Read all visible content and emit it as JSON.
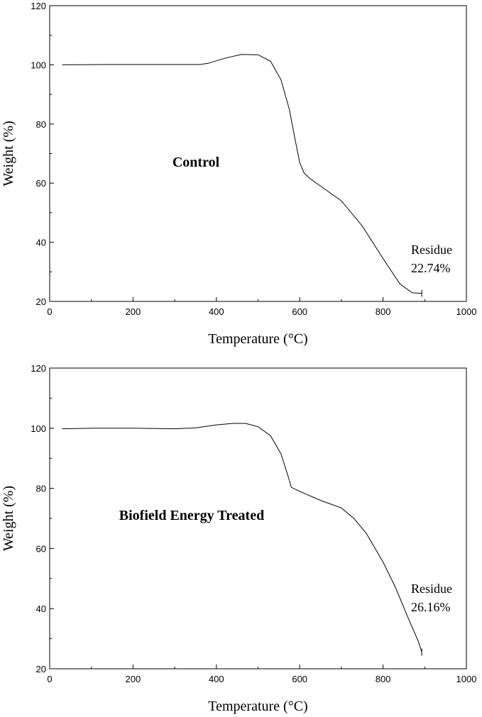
{
  "chart_data": [
    {
      "type": "line",
      "title": "Control",
      "xlabel": "Temperature (°C)",
      "ylabel": "Weight (%)",
      "xlim": [
        0,
        1000
      ],
      "ylim": [
        20,
        120
      ],
      "xticks": [
        0,
        200,
        400,
        600,
        800,
        1000
      ],
      "yticks": [
        20,
        40,
        60,
        80,
        100,
        120
      ],
      "grid": false,
      "annotation": [
        "Residue",
        "22.74%"
      ],
      "series": [
        {
          "x": [
            30,
            120,
            250,
            360,
            380,
            420,
            460,
            500,
            530,
            555,
            575,
            590,
            600,
            610,
            615,
            625,
            650,
            700,
            750,
            800,
            840,
            870,
            882,
            893
          ],
          "y": [
            100,
            100.1,
            100.1,
            100.1,
            100.5,
            102.2,
            103.5,
            103.4,
            101.2,
            95,
            85,
            74,
            67,
            63.5,
            62.8,
            61.5,
            59,
            54,
            45.5,
            34.5,
            26,
            22.9,
            22.8,
            22.74
          ]
        }
      ]
    },
    {
      "type": "line",
      "title": "Biofield Energy Treated",
      "xlabel": "Temperature (°C)",
      "ylabel": "Weight (%)",
      "xlim": [
        0,
        1000
      ],
      "ylim": [
        20,
        120
      ],
      "xticks": [
        0,
        200,
        400,
        600,
        800,
        1000
      ],
      "yticks": [
        20,
        40,
        60,
        80,
        100,
        120
      ],
      "grid": false,
      "annotation": [
        "Residue",
        "26.16%"
      ],
      "series": [
        {
          "x": [
            30,
            100,
            200,
            300,
            350,
            400,
            440,
            470,
            500,
            530,
            555,
            570,
            580,
            600,
            650,
            700,
            730,
            760,
            800,
            830,
            860,
            885,
            893
          ],
          "y": [
            99.8,
            100,
            100,
            99.8,
            100.1,
            101.1,
            101.6,
            101.6,
            100.5,
            97.5,
            91.5,
            85,
            80.3,
            79,
            76,
            73.5,
            70,
            65,
            55.5,
            47,
            37,
            29,
            25.5
          ]
        }
      ]
    }
  ]
}
